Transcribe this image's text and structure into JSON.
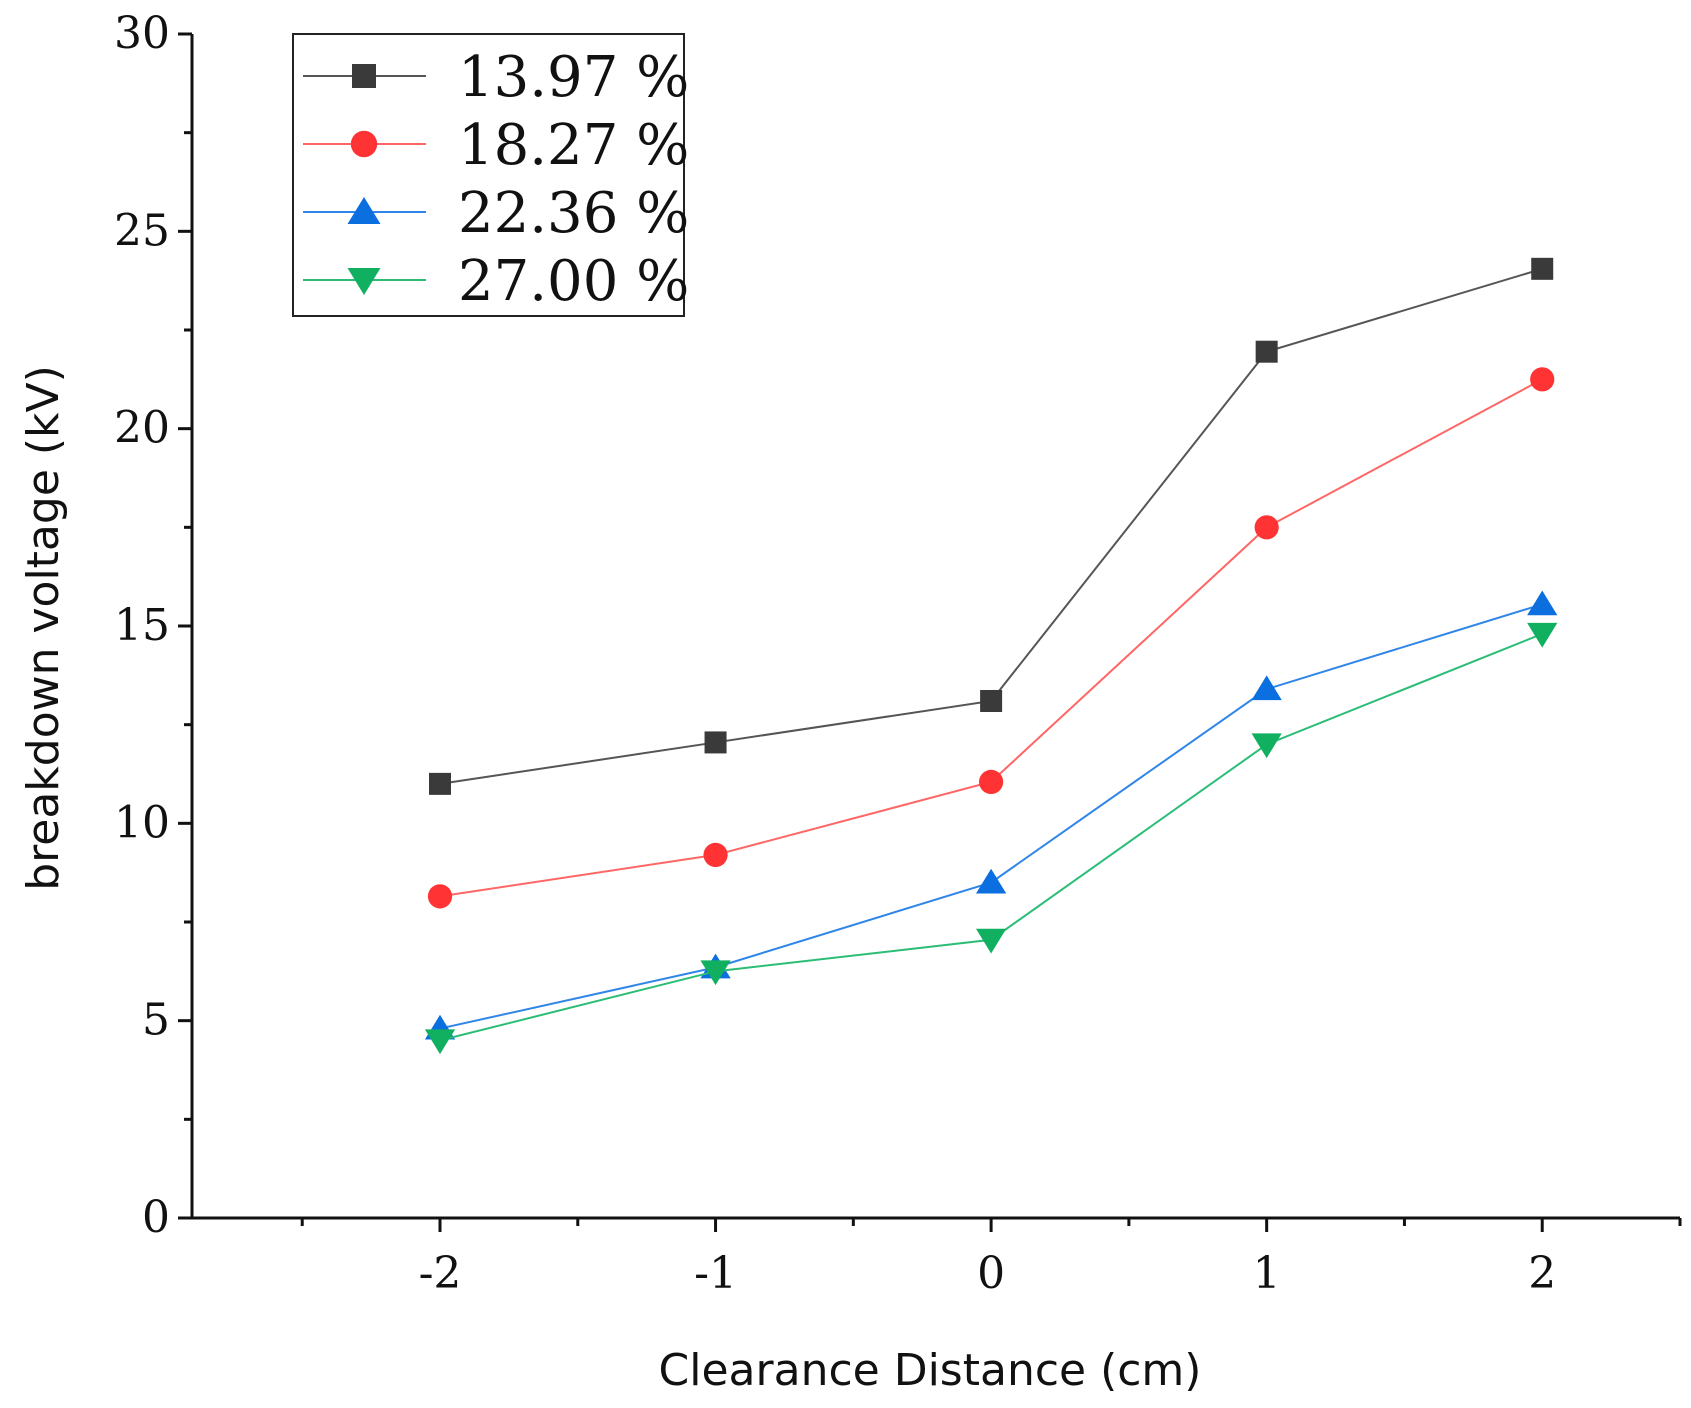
{
  "chart_data": {
    "type": "line",
    "title": "",
    "xlabel": "Clearance Distance (cm)",
    "ylabel": "breakdown voltage (kV)",
    "x": [
      -2,
      -1,
      0,
      1,
      2
    ],
    "xlim": [
      -2.9,
      2.5
    ],
    "ylim": [
      0,
      30
    ],
    "xticks": [
      -2,
      -1,
      0,
      1,
      2
    ],
    "xtick_labels": [
      "-2",
      "-1",
      "0",
      "1",
      "2"
    ],
    "yticks": [
      0,
      5,
      10,
      15,
      20,
      25,
      30
    ],
    "ytick_labels": [
      "0",
      "5",
      "10",
      "15",
      "20",
      "25",
      "30"
    ],
    "grid": false,
    "legend_position": "top-left",
    "series": [
      {
        "name": "13.97 %",
        "color": "#3a3a3a",
        "line_color": "#555555",
        "marker": "square",
        "values": [
          11.0,
          12.05,
          13.1,
          21.95,
          24.05
        ]
      },
      {
        "name": "18.27 %",
        "color": "#ff3333",
        "line_color": "#ff6666",
        "marker": "circle",
        "values": [
          8.15,
          9.2,
          11.05,
          17.5,
          21.25
        ]
      },
      {
        "name": "22.36 %",
        "color": "#0b6fe0",
        "line_color": "#2f86e8",
        "marker": "triangle-up",
        "values": [
          4.8,
          6.35,
          8.5,
          13.4,
          15.55
        ]
      },
      {
        "name": "27.00 %",
        "color": "#10b060",
        "line_color": "#2bbd76",
        "marker": "triangle-down",
        "values": [
          4.5,
          6.25,
          7.05,
          12.0,
          14.8
        ]
      }
    ]
  }
}
